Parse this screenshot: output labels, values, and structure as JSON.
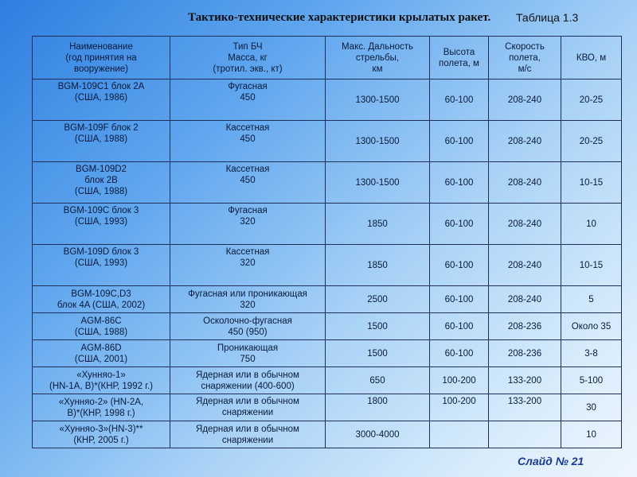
{
  "title": "Тактико-технические характеристики крылатых ракет.",
  "table_label": "Таблица 1.3",
  "slide_label": "Слайд № 21",
  "columns": [
    "Наименование\n(год принятия на\nвооружение)",
    "Тип БЧ\nМасса, кг\n(тротил. экв., кт)",
    "Макс. Дальность\nстрельбы,\nкм",
    "Высота\nполета, м",
    "Скорость\nполета,\nм/с",
    "КВО, м"
  ],
  "rows": [
    [
      "BGM-109C1 блок 2A\n(США, 1986)",
      "Фугасная\n450",
      "1300-1500",
      "60-100",
      "208-240",
      "20-25"
    ],
    [
      "BGM-109F блок 2\n(США, 1988)",
      "Кассетная\n450",
      "1300-1500",
      "60-100",
      "208-240",
      "20-25"
    ],
    [
      "BGM-109D2\nблок 2B\n(США, 1988)",
      "Кассетная\n450",
      "1300-1500",
      "60-100",
      "208-240",
      "10-15"
    ],
    [
      "BGM-109C блок 3\n(США, 1993)",
      "Фугасная\n320",
      "1850",
      "60-100",
      "208-240",
      "10"
    ],
    [
      "BGM-109D блок 3\n(США, 1993)",
      "Кассетная\n320",
      "1850",
      "60-100",
      "208-240",
      "10-15"
    ],
    [
      "BGM-109C,D3\nблок 4A (США, 2002)",
      "Фугасная или проникающая\n320",
      "2500",
      "60-100",
      "208-240",
      "5"
    ],
    [
      "AGM-86C\n(США, 1988)",
      "Осколочно-фугасная\n450 (950)",
      "1500",
      "60-100",
      "208-236",
      "Около 35"
    ],
    [
      "AGM-86D\n(США, 2001)",
      "Проникающая\n750",
      "1500",
      "60-100",
      "208-236",
      "3-8"
    ],
    [
      "«Хунняо-1»\n(HN-1A, B)*(КНР, 1992 г.)",
      "Ядерная или в обычном\nснаряжении (400-600)",
      "650",
      "100-200",
      "133-200",
      "5-100"
    ],
    [
      "«Хунняо-2» (HN-2A,\nB)*(КНР, 1998 г.)",
      "Ядерная или в обычном\nснаряжении",
      "1800",
      "100-200",
      "133-200",
      "30"
    ],
    [
      "«Хунняо-3»(HN-3)**\n(КНР, 2005 г.)",
      "Ядерная или в обычном\nснаряжении",
      "3000-4000",
      "",
      "",
      "10"
    ]
  ]
}
